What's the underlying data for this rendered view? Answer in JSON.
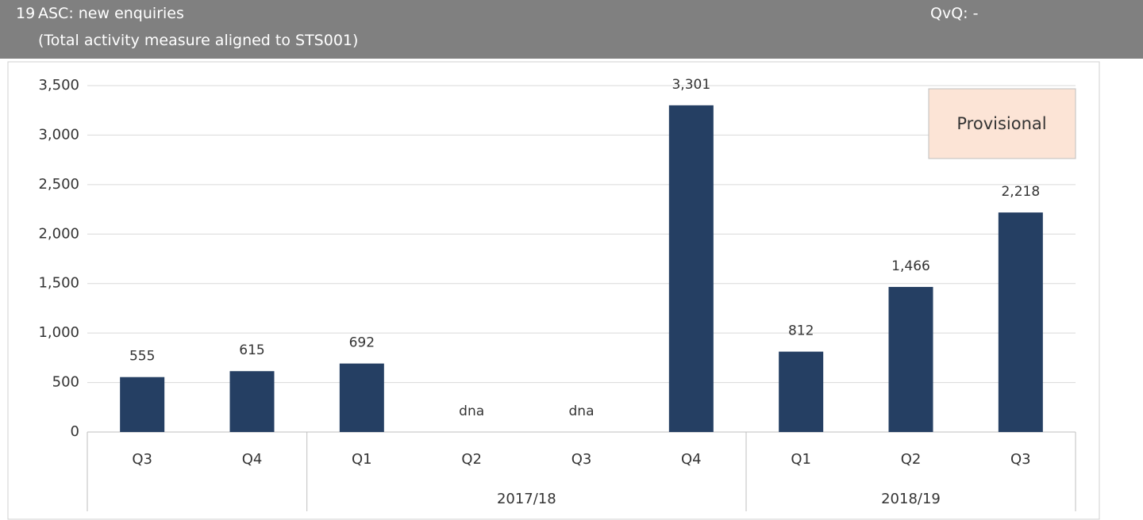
{
  "header": {
    "number": "19",
    "title": "ASC: new enquiries",
    "subtitle": "(Total activity measure aligned to STS001)",
    "qvq": "QvQ: -"
  },
  "chart_data": {
    "type": "bar",
    "categories": [
      "Q3",
      "Q4",
      "Q1",
      "Q2",
      "Q3",
      "Q4",
      "Q1",
      "Q2",
      "Q3"
    ],
    "category_groups": [
      null,
      null,
      "2017/18",
      "2017/18",
      "2017/18",
      "2017/18",
      "2018/19",
      "2018/19",
      "2018/19"
    ],
    "values": [
      555,
      615,
      692,
      null,
      null,
      3301,
      812,
      1466,
      2218
    ],
    "value_labels": [
      "555",
      "615",
      "692",
      "dna",
      "dna",
      "3,301",
      "812",
      "1,466",
      "2,218"
    ],
    "color": "#253f63",
    "ylim": [
      0,
      3500
    ],
    "yticks": [
      0,
      500,
      {
        "value": 1000,
        "label": "1,000"
      },
      {
        "value": 1500,
        "label": "1,500"
      },
      {
        "value": 2000,
        "label": "2,000"
      },
      {
        "value": 2500,
        "label": "2,500"
      },
      {
        "value": 3000,
        "label": "3,000"
      },
      {
        "value": 3500,
        "label": "3,500"
      }
    ],
    "grid": true,
    "annotation": "Provisional"
  }
}
